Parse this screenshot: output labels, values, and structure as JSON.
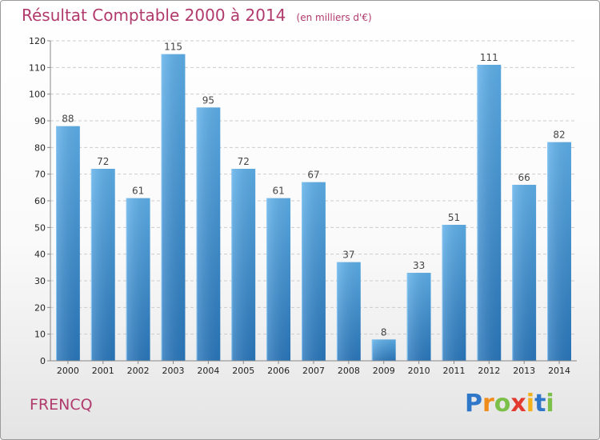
{
  "chart_data": {
    "type": "bar",
    "title": "Résultat Comptable 2000 à 2014",
    "unit_note": "(en milliers d'€)",
    "categories": [
      "2000",
      "2001",
      "2002",
      "2003",
      "2004",
      "2005",
      "2006",
      "2007",
      "2008",
      "2009",
      "2010",
      "2011",
      "2012",
      "2013",
      "2014"
    ],
    "values": [
      88,
      72,
      61,
      115,
      95,
      72,
      61,
      67,
      37,
      8,
      33,
      51,
      111,
      66,
      82
    ],
    "ylim": [
      0,
      120
    ],
    "yticks": [
      0,
      10,
      20,
      30,
      40,
      50,
      60,
      70,
      80,
      90,
      100,
      110,
      120
    ],
    "grid": true,
    "bar_color": "#3a8fd6"
  },
  "commune": "FRENCQ",
  "brand": {
    "letters": [
      "P",
      "r",
      "o",
      "x",
      "i",
      "t",
      "i"
    ],
    "colors": [
      "#2f77c9",
      "#f08c1c",
      "#7cc04a",
      "#e23a2e",
      "#f2b21c",
      "#2f77c9",
      "#7cc04a"
    ]
  }
}
